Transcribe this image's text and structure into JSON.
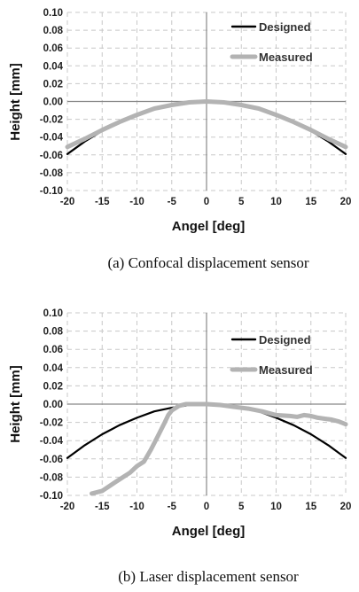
{
  "chart_data": [
    {
      "type": "line",
      "caption": "(a) Confocal displacement sensor",
      "xlabel": "Angel [deg]",
      "ylabel": "Height [mm]",
      "xlim": [
        -20,
        20
      ],
      "ylim": [
        -0.1,
        0.1
      ],
      "xticks": [
        "-20",
        "-15",
        "-10",
        "-5",
        "0",
        "5",
        "10",
        "15",
        "20"
      ],
      "yticks": [
        "0.10",
        "0.08",
        "0.06",
        "0.04",
        "0.02",
        "0.00",
        "-0.02",
        "-0.04",
        "-0.06",
        "-0.08",
        "-0.10"
      ],
      "grid": true,
      "legend_position": "top-right",
      "series": [
        {
          "name": "Designed",
          "color": "#000000",
          "x": [
            -20,
            -17.5,
            -15,
            -12.5,
            -10,
            -7.5,
            -5,
            -2.5,
            0,
            2.5,
            5,
            7.5,
            10,
            12.5,
            15,
            17.5,
            20
          ],
          "y": [
            -0.059,
            -0.045,
            -0.033,
            -0.023,
            -0.015,
            -0.008,
            -0.004,
            -0.001,
            0.0,
            -0.001,
            -0.004,
            -0.008,
            -0.015,
            -0.023,
            -0.033,
            -0.045,
            -0.059
          ]
        },
        {
          "name": "Measured",
          "color": "#b3b3b3",
          "x": [
            -20,
            -17.5,
            -15,
            -12.5,
            -10,
            -7.5,
            -5,
            -2.5,
            0,
            2.5,
            5,
            7.5,
            10,
            12.5,
            15,
            17.5,
            20
          ],
          "y": [
            -0.051,
            -0.042,
            -0.032,
            -0.023,
            -0.015,
            -0.008,
            -0.004,
            -0.001,
            0.0,
            -0.001,
            -0.004,
            -0.008,
            -0.015,
            -0.023,
            -0.032,
            -0.042,
            -0.051
          ]
        }
      ]
    },
    {
      "type": "line",
      "caption": "(b) Laser displacement sensor",
      "xlabel": "Angel [deg]",
      "ylabel": "Height [mm]",
      "xlim": [
        -20,
        20
      ],
      "ylim": [
        -0.1,
        0.1
      ],
      "xticks": [
        "-20",
        "-15",
        "-10",
        "-5",
        "0",
        "5",
        "10",
        "15",
        "20"
      ],
      "yticks": [
        "0.10",
        "0.08",
        "0.06",
        "0.04",
        "0.02",
        "0.00",
        "-0.02",
        "-0.04",
        "-0.06",
        "-0.08",
        "-0.10"
      ],
      "grid": true,
      "legend_position": "top-right",
      "series": [
        {
          "name": "Designed",
          "color": "#000000",
          "x": [
            -20,
            -17.5,
            -15,
            -12.5,
            -10,
            -7.5,
            -5,
            -2.5,
            0,
            2.5,
            5,
            7.5,
            10,
            12.5,
            15,
            17.5,
            20
          ],
          "y": [
            -0.059,
            -0.045,
            -0.033,
            -0.023,
            -0.015,
            -0.008,
            -0.004,
            -0.001,
            0.0,
            -0.001,
            -0.004,
            -0.008,
            -0.015,
            -0.023,
            -0.033,
            -0.045,
            -0.059
          ]
        },
        {
          "name": "Measured",
          "color": "#b3b3b3",
          "x": [
            -16.5,
            -15,
            -13,
            -11,
            -10,
            -9,
            -8,
            -7,
            -6,
            -5.5,
            -5,
            -4,
            -3,
            -2,
            0,
            2,
            4,
            6,
            8,
            10,
            12,
            13,
            14,
            15,
            16,
            17,
            18,
            19,
            20
          ],
          "y": [
            -0.098,
            -0.095,
            -0.085,
            -0.075,
            -0.068,
            -0.063,
            -0.05,
            -0.035,
            -0.02,
            -0.012,
            -0.007,
            -0.002,
            0.0,
            0.0,
            0.0,
            -0.001,
            -0.003,
            -0.005,
            -0.008,
            -0.012,
            -0.013,
            -0.014,
            -0.012,
            -0.013,
            -0.015,
            -0.016,
            -0.017,
            -0.019,
            -0.022
          ]
        }
      ]
    }
  ]
}
